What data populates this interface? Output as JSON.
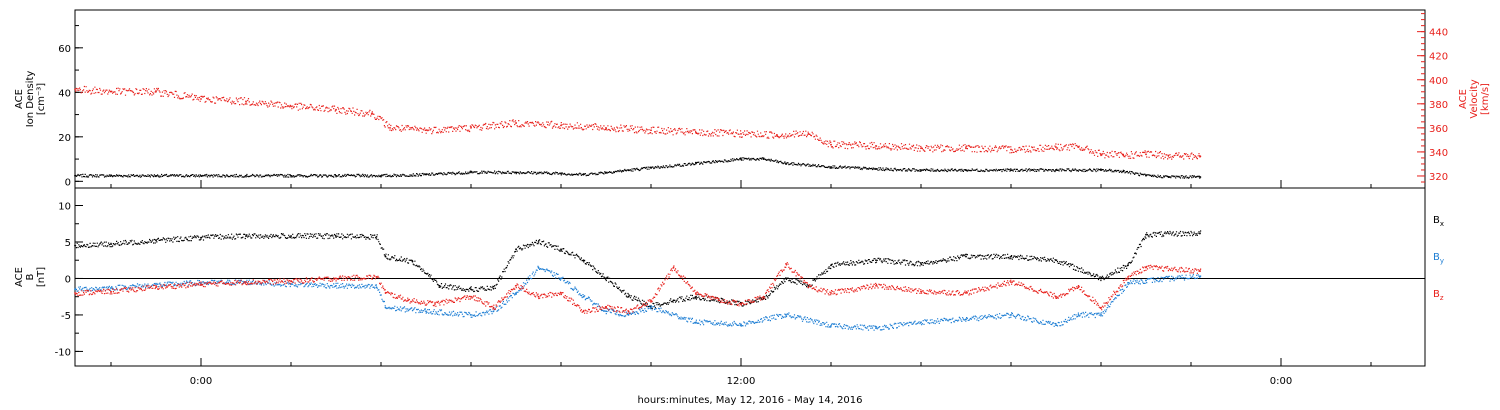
{
  "colors": {
    "black": "#000000",
    "red": "#e8211c",
    "blue": "#1f7fd4"
  },
  "x_axis": {
    "label": "hours:minutes, May 12, 2016 - May 14, 2016",
    "range_hours": [
      -2.8,
      27.2
    ],
    "tick_labels": [
      {
        "hour": 0,
        "text": "0:00"
      },
      {
        "hour": 12,
        "text": "12:00"
      },
      {
        "hour": 24,
        "text": "0:00"
      }
    ],
    "minor_tick_step_hours": 2
  },
  "chart_data": [
    {
      "type": "scatter",
      "panel": "top",
      "title": "",
      "left_axis": {
        "label_lines": [
          "ACE",
          "Ion Density",
          "[cm⁻³]"
        ],
        "ylim": [
          -3,
          77
        ],
        "ticks": [
          0,
          20,
          40,
          60
        ],
        "tick_labels": [
          "0",
          "20",
          "40",
          "60"
        ]
      },
      "right_axis": {
        "label_lines": [
          "ACE",
          "Velocity",
          "[km/s]"
        ],
        "ylim": [
          310,
          458
        ],
        "ticks": [
          320,
          340,
          360,
          380,
          400,
          420,
          440
        ],
        "tick_labels": [
          "320",
          "340",
          "360",
          "380",
          "400",
          "420",
          "440"
        ]
      },
      "series": [
        {
          "axis": "left",
          "color": "#000000",
          "x": [
            -2.8,
            -2,
            -1,
            0,
            1,
            2,
            3,
            4,
            5,
            6,
            7,
            8,
            8.5,
            9,
            9.5,
            10,
            11,
            12,
            12.5,
            13,
            14,
            15,
            16,
            17,
            18,
            19,
            20,
            20.5,
            21,
            21.5,
            22.2
          ],
          "y": [
            2.5,
            2.5,
            2.5,
            2.5,
            2.5,
            2.5,
            2.5,
            2.5,
            3,
            4,
            4,
            3.5,
            3,
            4,
            5,
            6,
            8,
            10,
            10,
            8,
            6.5,
            5.5,
            5,
            5,
            5,
            5,
            5,
            4.5,
            2.5,
            2,
            2
          ]
        },
        {
          "axis": "right",
          "color": "#e8211c",
          "x": [
            -2.8,
            -2,
            -1,
            0,
            1,
            2,
            3,
            3.8,
            4.2,
            5,
            6,
            7,
            8,
            9,
            10,
            11,
            12,
            12.8,
            13.5,
            14,
            15,
            16,
            17,
            18,
            19,
            19.5,
            20,
            20.5,
            21,
            21.5,
            22.2
          ],
          "y": [
            392,
            390,
            390,
            384,
            382,
            378,
            375,
            372,
            360,
            358,
            360,
            364,
            362,
            360,
            358,
            356,
            355,
            354,
            355,
            346,
            345,
            343,
            343,
            342,
            344,
            344,
            338,
            337,
            338,
            337,
            336
          ]
        }
      ]
    },
    {
      "type": "scatter",
      "panel": "bottom",
      "title": "",
      "left_axis": {
        "label_lines": [
          "ACE",
          "B",
          "[nT]"
        ],
        "ylim": [
          -12,
          12.4
        ],
        "ticks": [
          -10,
          -5,
          0,
          5,
          10
        ],
        "tick_labels": [
          "-10",
          "-5",
          "0",
          "5",
          "10"
        ]
      },
      "legend_position": "right",
      "series": [
        {
          "name": "B",
          "subscript": "x",
          "color": "#000000",
          "x": [
            -2.8,
            -2,
            -1,
            0,
            1,
            2,
            3,
            3.9,
            4.1,
            4.7,
            5.3,
            6,
            6.5,
            7,
            7.5,
            8,
            8.5,
            9,
            9.5,
            10,
            10.5,
            11,
            11.5,
            12,
            12.5,
            13,
            13.5,
            14,
            15,
            16,
            17,
            18,
            19,
            20,
            20.6,
            21,
            22.2
          ],
          "y": [
            4.5,
            4.7,
            5.2,
            5.6,
            5.8,
            5.8,
            5.8,
            5.7,
            3,
            2.3,
            -1,
            -1.5,
            -1.4,
            4,
            5,
            4,
            2.5,
            0,
            -2.5,
            -3.8,
            -3,
            -2.5,
            -3,
            -3.5,
            -2.8,
            0,
            -1,
            1.8,
            2.5,
            2,
            3,
            3,
            2.5,
            0,
            1.8,
            6,
            6.2
          ]
        },
        {
          "name": "B",
          "subscript": "y",
          "color": "#1f7fd4",
          "x": [
            -2.8,
            -2,
            -1,
            0,
            1,
            2,
            3,
            3.9,
            4.1,
            5,
            6,
            6.5,
            7,
            7.5,
            8,
            8.5,
            9,
            9.5,
            10,
            11,
            12,
            13,
            14,
            15,
            16,
            17,
            18,
            19,
            19.5,
            20,
            20.6,
            21,
            22.2
          ],
          "y": [
            -1.5,
            -1.3,
            -0.9,
            -0.6,
            -0.5,
            -0.8,
            -1,
            -1.2,
            -4,
            -4.5,
            -5,
            -4.5,
            -2,
            1.5,
            0,
            -2.5,
            -4.5,
            -5,
            -4,
            -6,
            -6.3,
            -5,
            -6.5,
            -6.8,
            -6,
            -5.6,
            -5,
            -6.4,
            -5,
            -5,
            -0.6,
            -0.3,
            0.3
          ]
        },
        {
          "name": "B",
          "subscript": "z",
          "color": "#e8211c",
          "x": [
            -2.8,
            -2,
            -1,
            0,
            1,
            2,
            3,
            3.9,
            4.1,
            4.6,
            5.2,
            6,
            6.5,
            7,
            7.5,
            8,
            8.5,
            9,
            9.5,
            10,
            10.5,
            11,
            11.5,
            12,
            12.5,
            13,
            13.5,
            14,
            15,
            16,
            17,
            18,
            19,
            19.5,
            20,
            20.6,
            21,
            22.2
          ],
          "y": [
            -2,
            -1.8,
            -1.2,
            -0.8,
            -0.5,
            -0.4,
            0,
            0.2,
            -2,
            -3,
            -3.5,
            -2.5,
            -4,
            -1,
            -2.5,
            -2,
            -4.5,
            -4,
            -4.5,
            -3,
            1.5,
            -2,
            -3,
            -3.5,
            -2.5,
            2,
            -1.2,
            -2,
            -1,
            -1.8,
            -2,
            -0.5,
            -2.5,
            -1.2,
            -4,
            0.2,
            1.5,
            1
          ]
        }
      ]
    }
  ]
}
